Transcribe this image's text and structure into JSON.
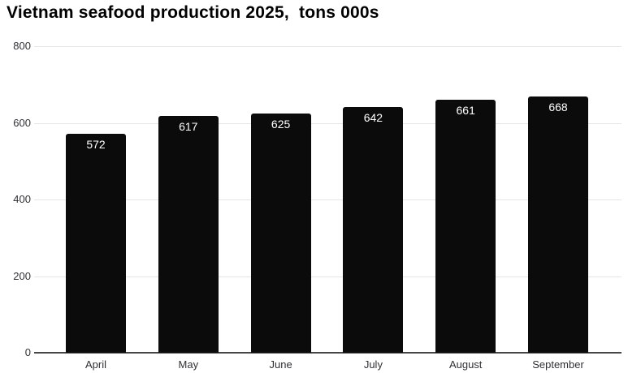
{
  "chart_data": {
    "type": "bar",
    "title": "Vietnam seafood production 2025,  tons 000s",
    "categories": [
      "April",
      "May",
      "June",
      "July",
      "August",
      "September"
    ],
    "values": [
      572,
      617,
      625,
      642,
      661,
      668
    ],
    "xlabel": "",
    "ylabel": "",
    "ylim": [
      0,
      800
    ],
    "yticks": [
      0,
      200,
      400,
      600,
      800
    ],
    "grid": true,
    "legend_position": "none",
    "bar_color": "#0b0b0b",
    "value_label_color": "#ffffff",
    "gridline_color": "#e6e6e6",
    "axis_line_color": "#474747",
    "tick_label_color": "#2e3033",
    "background_color": "#ffffff"
  }
}
